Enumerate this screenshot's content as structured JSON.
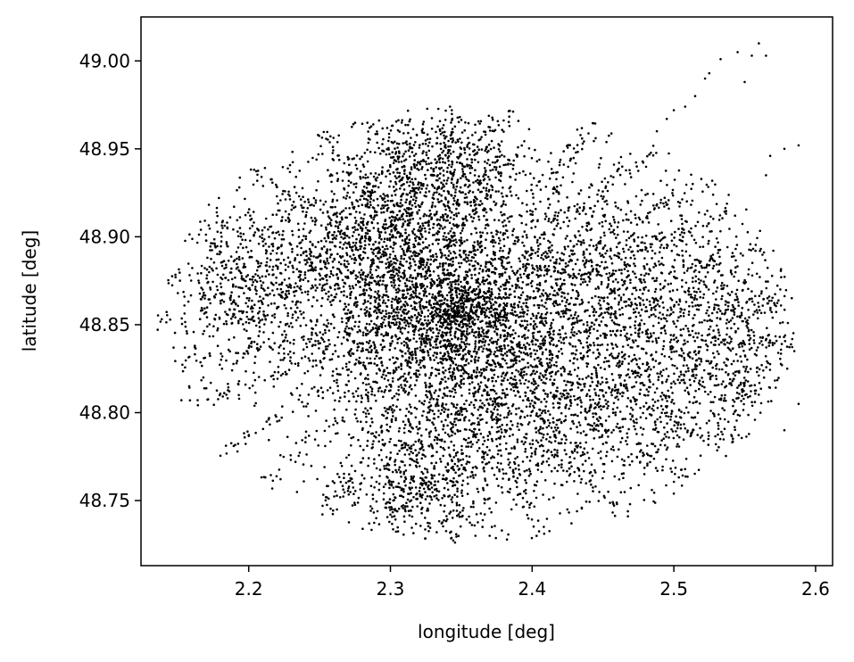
{
  "chart_data": {
    "type": "scatter",
    "title": "",
    "xlabel": "longitude [deg]",
    "ylabel": "latitude [deg]",
    "xlim": [
      2.124,
      2.612
    ],
    "ylim": [
      48.713,
      49.025
    ],
    "xticks": [
      2.2,
      2.3,
      2.4,
      2.5,
      2.6
    ],
    "xtick_labels": [
      "2.2",
      "2.3",
      "2.4",
      "2.5",
      "2.6"
    ],
    "yticks": [
      48.75,
      48.8,
      48.85,
      48.9,
      48.95,
      49.0
    ],
    "ytick_labels": [
      "48.75",
      "48.80",
      "48.85",
      "48.90",
      "48.95",
      "49.00"
    ],
    "grid": false,
    "legend": "none",
    "marker_color": "#000000",
    "center": [
      2.345,
      48.855
    ],
    "clusters": [
      {
        "x": 2.345,
        "y": 48.855,
        "sx": 0.055,
        "sy": 0.04,
        "n": 2600
      },
      {
        "x": 2.29,
        "y": 48.9,
        "sx": 0.04,
        "sy": 0.025,
        "n": 900
      },
      {
        "x": 2.4,
        "y": 48.8,
        "sx": 0.05,
        "sy": 0.03,
        "n": 900
      },
      {
        "x": 2.47,
        "y": 48.88,
        "sx": 0.04,
        "sy": 0.03,
        "n": 700
      },
      {
        "x": 2.5,
        "y": 48.82,
        "sx": 0.04,
        "sy": 0.03,
        "n": 600
      },
      {
        "x": 2.2,
        "y": 48.87,
        "sx": 0.025,
        "sy": 0.022,
        "n": 450
      },
      {
        "x": 2.55,
        "y": 48.84,
        "sx": 0.02,
        "sy": 0.03,
        "n": 300
      },
      {
        "x": 2.32,
        "y": 48.76,
        "sx": 0.03,
        "sy": 0.015,
        "n": 400
      },
      {
        "x": 2.34,
        "y": 48.94,
        "sx": 0.03,
        "sy": 0.015,
        "n": 450
      }
    ],
    "outlier_points": [
      {
        "x": 2.56,
        "y": 49.01
      },
      {
        "x": 2.555,
        "y": 49.003
      },
      {
        "x": 2.565,
        "y": 49.003
      },
      {
        "x": 2.545,
        "y": 49.005
      },
      {
        "x": 2.533,
        "y": 49.001
      },
      {
        "x": 2.525,
        "y": 48.993
      },
      {
        "x": 2.522,
        "y": 48.99
      },
      {
        "x": 2.515,
        "y": 48.98
      },
      {
        "x": 2.508,
        "y": 48.974
      },
      {
        "x": 2.5,
        "y": 48.972
      },
      {
        "x": 2.495,
        "y": 48.967
      },
      {
        "x": 2.488,
        "y": 48.96
      },
      {
        "x": 2.55,
        "y": 48.988
      },
      {
        "x": 2.588,
        "y": 48.952
      },
      {
        "x": 2.578,
        "y": 48.95
      },
      {
        "x": 2.568,
        "y": 48.946
      },
      {
        "x": 2.565,
        "y": 48.935
      },
      {
        "x": 2.147,
        "y": 48.837
      },
      {
        "x": 2.155,
        "y": 48.837
      },
      {
        "x": 2.162,
        "y": 48.838
      },
      {
        "x": 2.15,
        "y": 48.868
      },
      {
        "x": 2.158,
        "y": 48.815
      },
      {
        "x": 2.168,
        "y": 48.82
      },
      {
        "x": 2.285,
        "y": 48.737
      },
      {
        "x": 2.29,
        "y": 48.74
      },
      {
        "x": 2.3,
        "y": 48.742
      },
      {
        "x": 2.31,
        "y": 48.738
      },
      {
        "x": 2.36,
        "y": 48.73
      },
      {
        "x": 2.37,
        "y": 48.73
      },
      {
        "x": 2.365,
        "y": 48.735
      },
      {
        "x": 2.5,
        "y": 48.754
      },
      {
        "x": 2.435,
        "y": 48.746
      },
      {
        "x": 2.588,
        "y": 48.805
      },
      {
        "x": 2.578,
        "y": 48.79
      },
      {
        "x": 2.58,
        "y": 48.825
      },
      {
        "x": 2.585,
        "y": 48.835
      }
    ]
  }
}
